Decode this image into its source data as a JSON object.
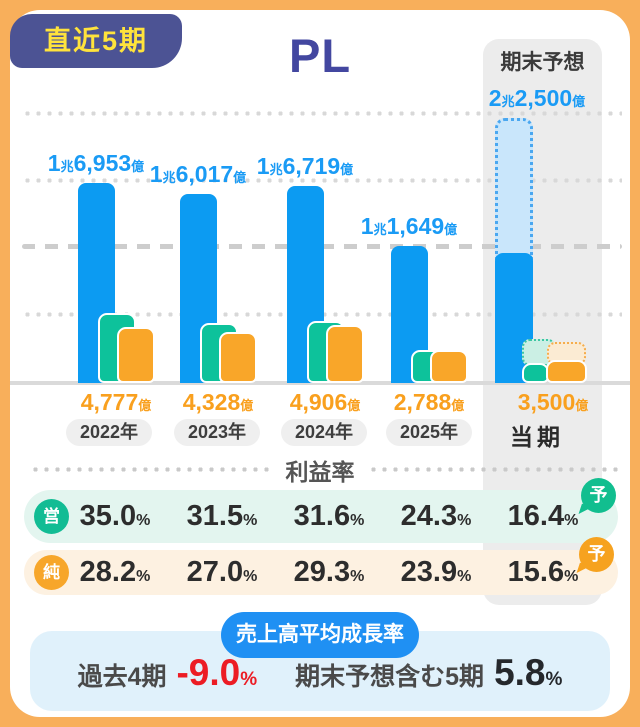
{
  "badge_label": "直近5期",
  "title": "PL",
  "forecast_column": {
    "header": "期末予想"
  },
  "chart_data": {
    "type": "bar",
    "title": "PL",
    "unit": "億円",
    "categories": [
      "2022年",
      "2023年",
      "2024年",
      "2025年",
      "当期"
    ],
    "ylim": [
      0,
      22500
    ],
    "gridlines": [
      5625,
      11250,
      16875,
      22500
    ],
    "legend_position": "none",
    "revenue": {
      "name": "売上高",
      "values": [
        16953,
        16017,
        16719,
        11649
      ],
      "labels": [
        "1兆6,953億",
        "1兆6,017億",
        "1兆6,719億",
        "1兆1,649億"
      ],
      "forecast_value": 22500,
      "forecast_label": "2兆2,500億",
      "current_actual_est": 11000
    },
    "operating_margin_pct": [
      35.0,
      31.5,
      31.6,
      24.3,
      16.4
    ],
    "operating_profit_forecast_est": 3690,
    "operating_current_actual_est": 1700,
    "net_profit": {
      "values": [
        4777,
        4328,
        4906,
        2788
      ],
      "labels": [
        "4,777億",
        "4,328億",
        "4,906億",
        "2,788億"
      ],
      "forecast_value": 3500,
      "forecast_label": "3,500億",
      "current_actual_est": 1850
    }
  },
  "margin_table": {
    "header": "利益率",
    "rows": [
      {
        "icon": "営",
        "values": [
          "35.0",
          "31.5",
          "31.6",
          "24.3",
          "16.4"
        ],
        "unit": "%",
        "badge": "予"
      },
      {
        "icon": "純",
        "values": [
          "28.2",
          "27.0",
          "29.3",
          "23.9",
          "15.6"
        ],
        "unit": "%",
        "badge": "予"
      }
    ]
  },
  "growth": {
    "title": "売上高平均成長率",
    "items": [
      {
        "label": "過去4期",
        "value": "-9.0",
        "unit": "%"
      },
      {
        "label": "期末予想含む5期",
        "value": "5.8",
        "unit": "%"
      }
    ]
  },
  "colors": {
    "revenue_bar": "#0C9BF2",
    "operating_bar": "#0DC29B",
    "net_bar": "#F9A629",
    "forecast_fill_blue": "#C9E6FB",
    "frame": "#F8AF5B",
    "badge_bg": "#4C5394",
    "badge_text": "#FFE33C",
    "title_text": "#4347A0",
    "negative_value": "#EC1C24"
  }
}
